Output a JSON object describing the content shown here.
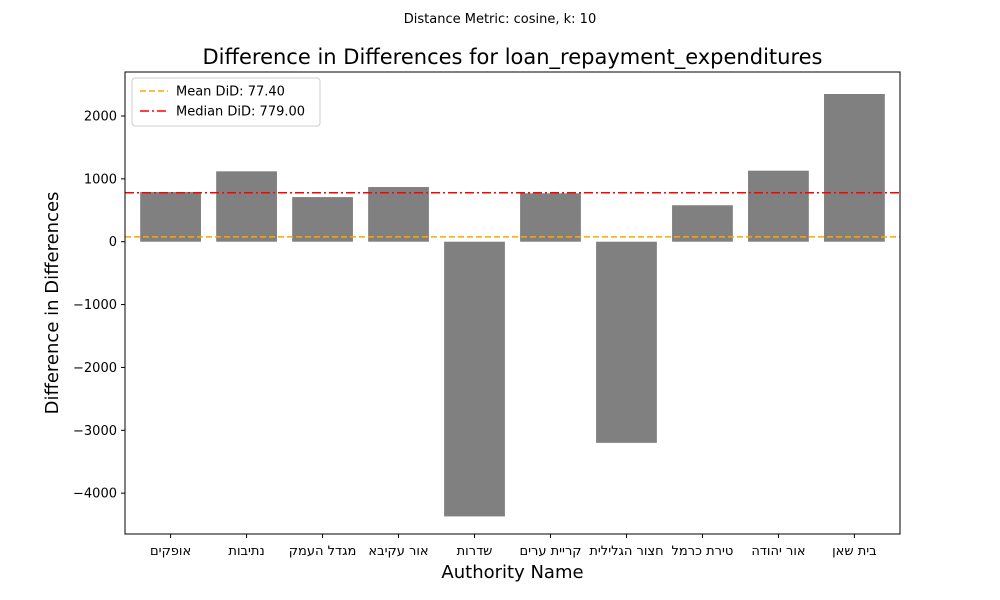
{
  "chart_data": {
    "type": "bar",
    "suptitle": "Distance Metric: cosine, k: 10",
    "title": "Difference in Differences for loan_repayment_expenditures",
    "xlabel": "Authority Name",
    "ylabel": "Difference in Differences",
    "categories": [
      "אופקים",
      "נתיבות",
      "מגדל העמק",
      "אור עקיבא",
      "שדרות",
      "קריית ערים",
      "חצור הגלילית",
      "טירת כרמל",
      "אור יהודה",
      "בית שאן"
    ],
    "values": [
      790,
      1120,
      710,
      870,
      -4370,
      770,
      -3200,
      580,
      1130,
      2350
    ],
    "ylim": [
      -4650,
      2700
    ],
    "yticks": [
      -4000,
      -3000,
      -2000,
      -1000,
      0,
      1000,
      2000
    ],
    "ytick_labels": [
      "−4000",
      "−3000",
      "−2000",
      "−1000",
      "0",
      "1000",
      "2000"
    ],
    "bar_color": "#808080",
    "reference_lines": [
      {
        "label": "Mean DiD: 77.40",
        "value": 77.4,
        "color": "#ffa500",
        "style": "dashed"
      },
      {
        "label": "Median DiD: 779.00",
        "value": 779.0,
        "color": "#ff0000",
        "style": "dashdot"
      }
    ],
    "legend_position": "top-left",
    "grid": false
  }
}
